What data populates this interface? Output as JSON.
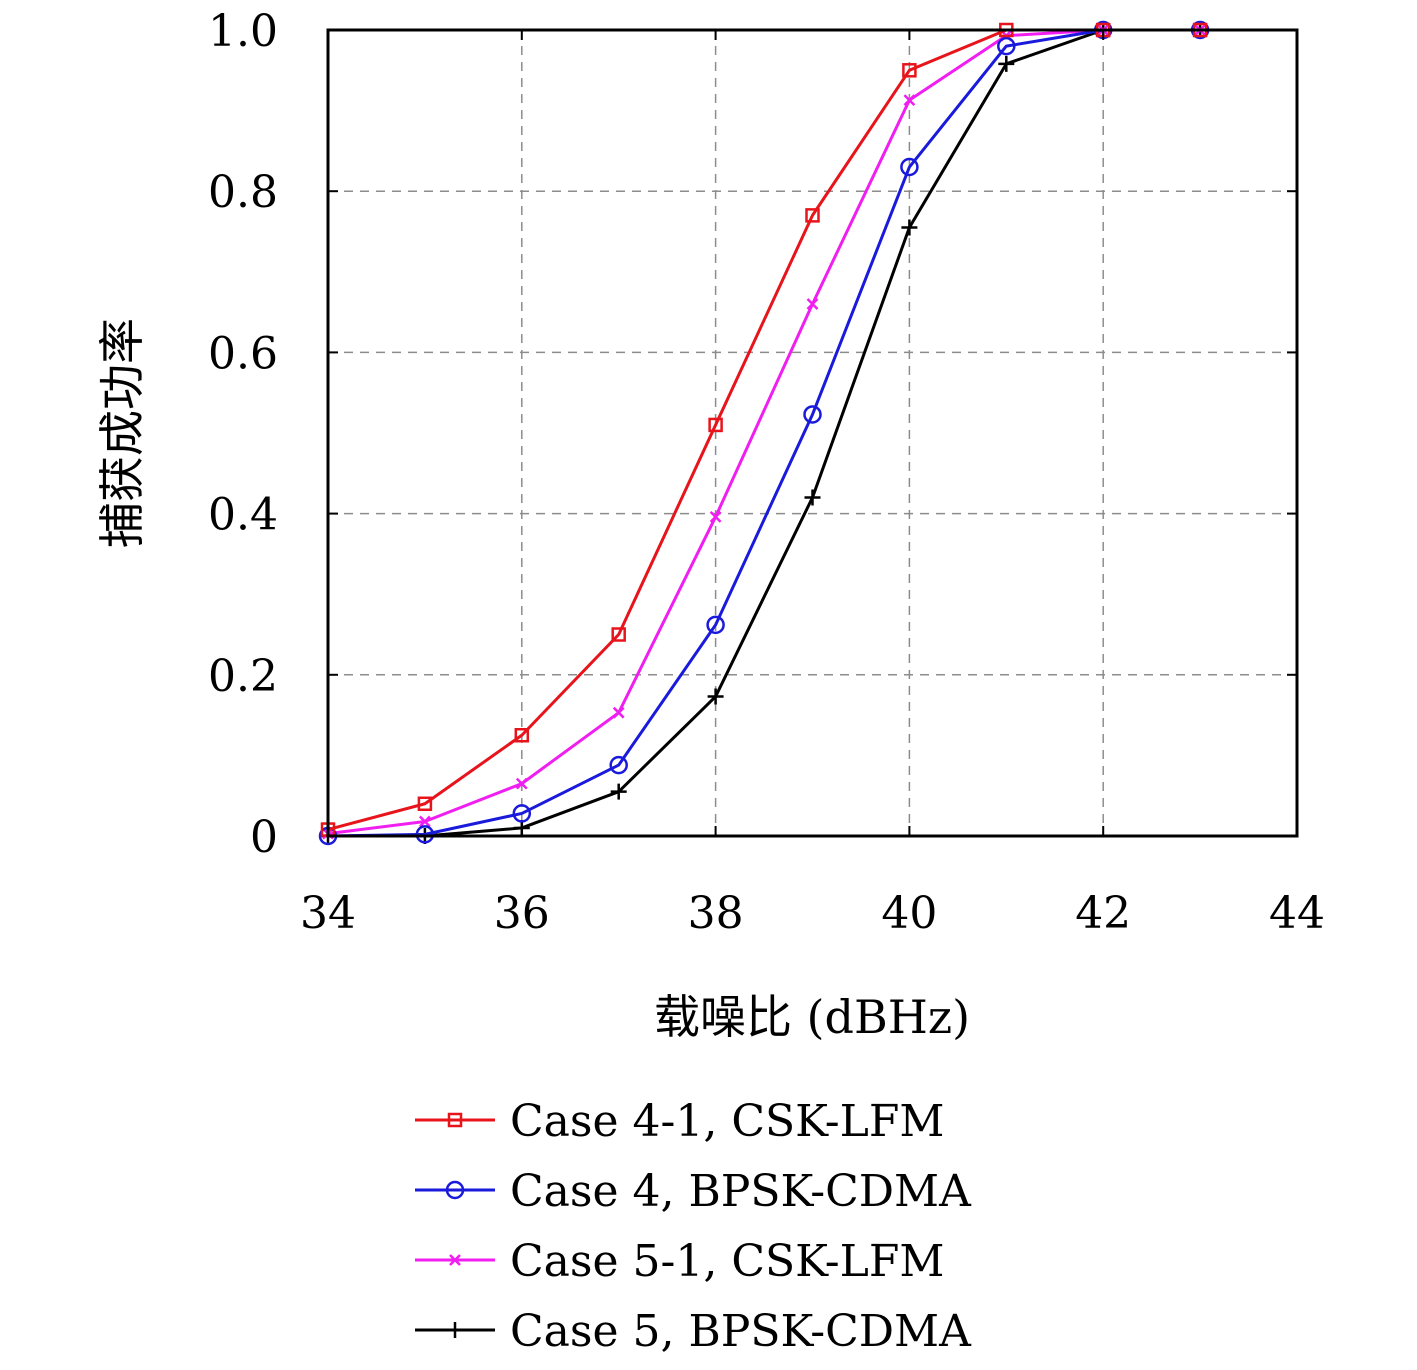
{
  "chart_data": {
    "type": "line",
    "xlabel": "载噪比 (dBHz)",
    "ylabel": "捕获成功率",
    "xlim": [
      34,
      44
    ],
    "ylim": [
      0,
      1
    ],
    "xticks": [
      34,
      36,
      38,
      40,
      42,
      44
    ],
    "yticks": [
      0,
      0.2,
      0.4,
      0.6,
      0.8,
      1.0
    ],
    "xtick_labels": [
      "34",
      "36",
      "38",
      "40",
      "42",
      "44"
    ],
    "ytick_labels": [
      "0",
      "0.2",
      "0.4",
      "0.6",
      "0.8",
      "1.0"
    ],
    "grid": true,
    "legend_position": "below",
    "x": [
      34,
      35,
      36,
      37,
      38,
      39,
      40,
      41,
      42,
      43
    ],
    "series": [
      {
        "name": "Case 4-1, CSK-LFM",
        "color": "#e8141b",
        "marker": "square",
        "values": [
          0.008,
          0.04,
          0.125,
          0.25,
          0.51,
          0.77,
          0.95,
          1.0,
          1.0,
          1.0
        ]
      },
      {
        "name": "Case 4, BPSK-CDMA",
        "color": "#1a1adc",
        "marker": "circle",
        "values": [
          0.0,
          0.002,
          0.028,
          0.088,
          0.262,
          0.523,
          0.83,
          0.98,
          1.0,
          1.0
        ]
      },
      {
        "name": "Case 5-1, CSK-LFM",
        "color": "#f01ef0",
        "marker": "x",
        "values": [
          0.003,
          0.018,
          0.065,
          0.153,
          0.396,
          0.66,
          0.913,
          0.993,
          1.0,
          1.0
        ]
      },
      {
        "name": "Case 5, BPSK-CDMA",
        "color": "#000000",
        "marker": "plus",
        "values": [
          0.0,
          0.0,
          0.01,
          0.055,
          0.173,
          0.42,
          0.755,
          0.958,
          1.0,
          1.0
        ]
      }
    ]
  }
}
